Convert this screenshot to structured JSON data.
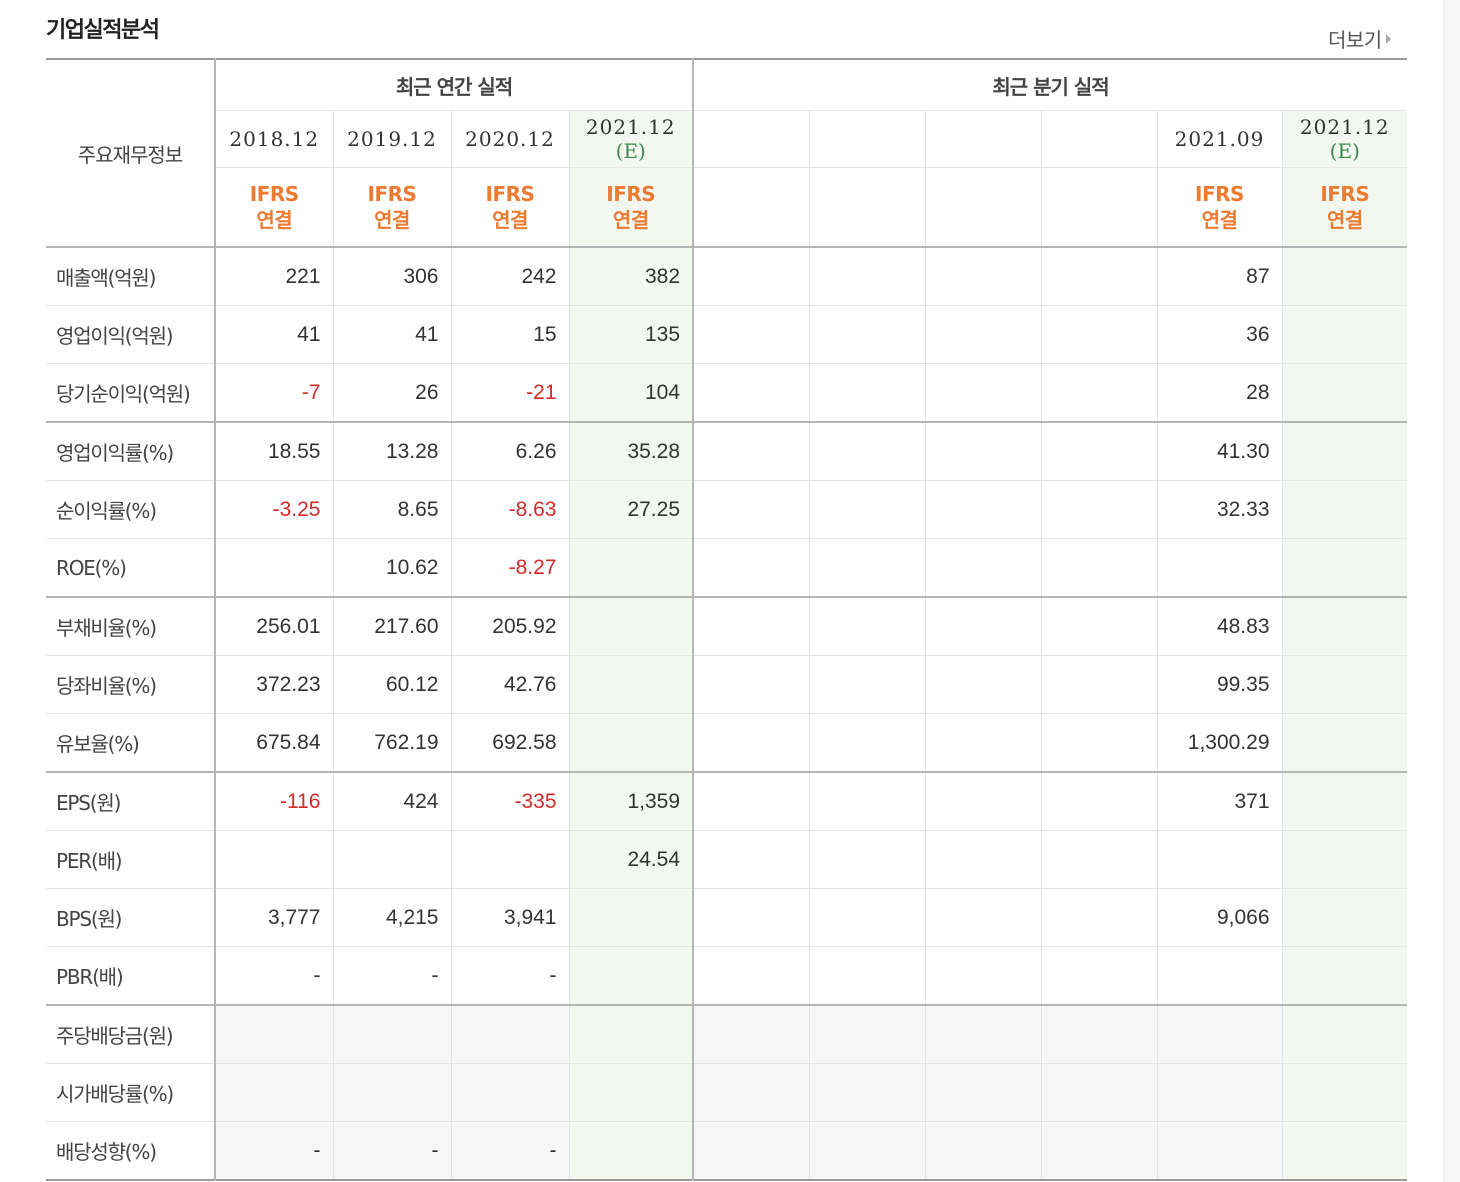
{
  "section_title": "기업실적분석",
  "more_link": "더보기",
  "header": {
    "row_label": "주요재무정보",
    "annual_group": "최근 연간 실적",
    "quarter_group": "최근 분기 실적",
    "annual_dates": [
      "2018.12",
      "2019.12",
      "2020.12",
      "2021.12"
    ],
    "quarter_dates": [
      "",
      "",
      "",
      "",
      "2021.09",
      "2021.12"
    ],
    "estimate_mark": "(E)",
    "ifrs_line1": "IFRS",
    "ifrs_line2": "연결"
  },
  "rows": [
    {
      "label": "매출액(억원)",
      "annual": [
        "221",
        "306",
        "242",
        "382"
      ],
      "quarter": [
        "",
        "",
        "",
        "",
        "87",
        ""
      ]
    },
    {
      "label": "영업이익(억원)",
      "annual": [
        "41",
        "41",
        "15",
        "135"
      ],
      "quarter": [
        "",
        "",
        "",
        "",
        "36",
        ""
      ]
    },
    {
      "label": "당기순이익(억원)",
      "annual": [
        "-7",
        "26",
        "-21",
        "104"
      ],
      "quarter": [
        "",
        "",
        "",
        "",
        "28",
        ""
      ]
    },
    {
      "label": "영업이익률(%)",
      "annual": [
        "18.55",
        "13.28",
        "6.26",
        "35.28"
      ],
      "quarter": [
        "",
        "",
        "",
        "",
        "41.30",
        ""
      ]
    },
    {
      "label": "순이익률(%)",
      "annual": [
        "-3.25",
        "8.65",
        "-8.63",
        "27.25"
      ],
      "quarter": [
        "",
        "",
        "",
        "",
        "32.33",
        ""
      ]
    },
    {
      "label": "ROE(%)",
      "annual": [
        "",
        "10.62",
        "-8.27",
        ""
      ],
      "quarter": [
        "",
        "",
        "",
        "",
        "",
        ""
      ]
    },
    {
      "label": "부채비율(%)",
      "annual": [
        "256.01",
        "217.60",
        "205.92",
        ""
      ],
      "quarter": [
        "",
        "",
        "",
        "",
        "48.83",
        ""
      ]
    },
    {
      "label": "당좌비율(%)",
      "annual": [
        "372.23",
        "60.12",
        "42.76",
        ""
      ],
      "quarter": [
        "",
        "",
        "",
        "",
        "99.35",
        ""
      ]
    },
    {
      "label": "유보율(%)",
      "annual": [
        "675.84",
        "762.19",
        "692.58",
        ""
      ],
      "quarter": [
        "",
        "",
        "",
        "",
        "1,300.29",
        ""
      ]
    },
    {
      "label": "EPS(원)",
      "annual": [
        "-116",
        "424",
        "-335",
        "1,359"
      ],
      "quarter": [
        "",
        "",
        "",
        "",
        "371",
        ""
      ]
    },
    {
      "label": "PER(배)",
      "annual": [
        "",
        "",
        "",
        "24.54"
      ],
      "quarter": [
        "",
        "",
        "",
        "",
        "",
        ""
      ]
    },
    {
      "label": "BPS(원)",
      "annual": [
        "3,777",
        "4,215",
        "3,941",
        ""
      ],
      "quarter": [
        "",
        "",
        "",
        "",
        "9,066",
        ""
      ]
    },
    {
      "label": "PBR(배)",
      "annual": [
        "-",
        "-",
        "-",
        ""
      ],
      "quarter": [
        "",
        "",
        "",
        "",
        "",
        ""
      ]
    },
    {
      "label": "주당배당금(원)",
      "annual": [
        "",
        "",
        "",
        ""
      ],
      "quarter": [
        "",
        "",
        "",
        "",
        "",
        ""
      ]
    },
    {
      "label": "시가배당률(%)",
      "annual": [
        "",
        "",
        "",
        ""
      ],
      "quarter": [
        "",
        "",
        "",
        "",
        "",
        ""
      ]
    },
    {
      "label": "배당성향(%)",
      "annual": [
        "-",
        "-",
        "-",
        ""
      ],
      "quarter": [
        "",
        "",
        "",
        "",
        "",
        ""
      ]
    }
  ],
  "colors": {
    "negative": "#d42a2a",
    "ifrs": "#ec7a31",
    "estimate": "#3b8a4b",
    "estimate_bg": "#f2f8ef"
  }
}
